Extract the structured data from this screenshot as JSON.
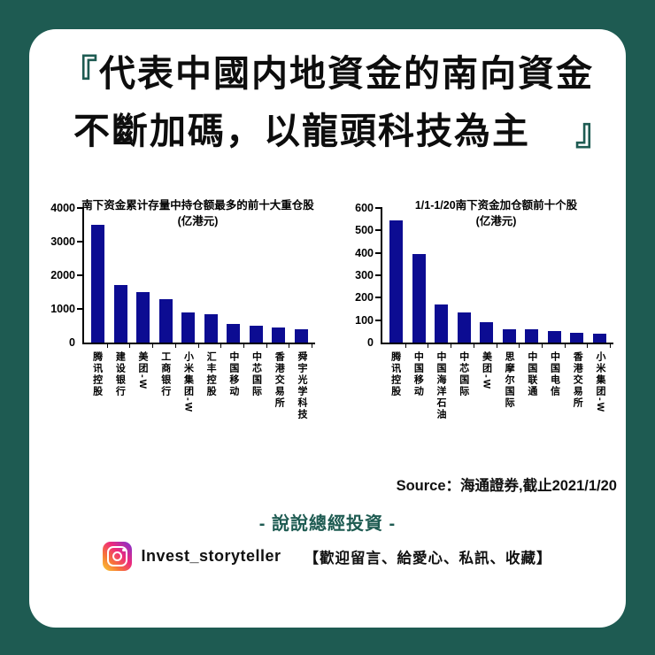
{
  "colors": {
    "teal": "#1E5B52",
    "bar_navy": "#0C0C92",
    "text_black": "#111111"
  },
  "header": {
    "bracket_open": "『",
    "bracket_close": "』",
    "line1": "代表中國内地資金的南向資金",
    "line2": "不斷加碼，以龍頭科技為主"
  },
  "chart_data": [
    {
      "type": "bar",
      "title": "南下资金累计存量中持仓额最多的前十大重仓股",
      "subtitle": "(亿港元)",
      "categories": [
        "腾讯控股",
        "建设银行",
        "美团-W",
        "工商银行",
        "小米集团-W",
        "汇丰控股",
        "中国移动",
        "中芯国际",
        "香港交易所",
        "舜宇光学科技"
      ],
      "values": [
        3500,
        1700,
        1500,
        1300,
        900,
        850,
        550,
        500,
        450,
        400
      ],
      "xlabel": "",
      "ylabel": "",
      "ylim": [
        0,
        4000
      ],
      "yticks": [
        0,
        1000,
        2000,
        3000,
        4000
      ],
      "grid": false,
      "legend": false,
      "bar_color": "#0C0C92"
    },
    {
      "type": "bar",
      "title": "1/1-1/20南下资金加仓额前十个股",
      "subtitle": "(亿港元)",
      "categories": [
        "腾讯控股",
        "中国移动",
        "中国海洋石油",
        "中芯国际",
        "美团-W",
        "思摩尔国际",
        "中国联通",
        "中国电信",
        "香港交易所",
        "小米集团-W"
      ],
      "values": [
        545,
        395,
        170,
        135,
        90,
        60,
        60,
        50,
        45,
        40
      ],
      "xlabel": "",
      "ylabel": "",
      "ylim": [
        0,
        600
      ],
      "yticks": [
        0,
        100,
        200,
        300,
        400,
        500,
        600
      ],
      "grid": false,
      "legend": false,
      "bar_color": "#0C0C92"
    }
  ],
  "source": {
    "text": "Source：海通證券,截止2021/1/20"
  },
  "footer": {
    "title": "- 說說總經投資 -",
    "handle": "Invest_storyteller",
    "note": "【歡迎留言、給愛心、私訊、收藏】",
    "icon": "instagram-icon"
  }
}
